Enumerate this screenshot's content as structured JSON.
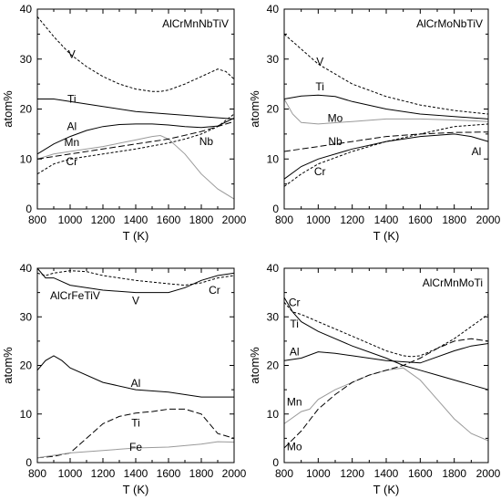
{
  "chart_data": [
    {
      "type": "line",
      "title": "AlCrMnNbTiV",
      "xlabel": "T (K)",
      "ylabel": "atom%",
      "xlim": [
        800,
        2000
      ],
      "ylim": [
        0,
        40
      ],
      "xticks": [
        "800",
        "1000",
        "1200",
        "1400",
        "1600",
        "1800",
        "2000"
      ],
      "yticks": [
        "0",
        "10",
        "20",
        "30",
        "40"
      ],
      "grid": false,
      "series": [
        {
          "name": "V",
          "style": "dashed",
          "color": "#000000",
          "label_at": [
            1010,
            31
          ],
          "x": [
            800,
            900,
            1000,
            1100,
            1200,
            1300,
            1400,
            1500,
            1550,
            1600,
            1700,
            1800,
            1900,
            1950,
            2000
          ],
          "y": [
            38.5,
            34.5,
            31,
            28.5,
            26.5,
            25,
            24,
            23.5,
            23.5,
            23.8,
            25,
            26.5,
            28,
            27.5,
            26
          ]
        },
        {
          "name": "Ti",
          "style": "solid",
          "color": "#000000",
          "label_at": [
            1010,
            22
          ],
          "x": [
            800,
            900,
            1000,
            1200,
            1400,
            1600,
            1800,
            2000
          ],
          "y": [
            22,
            22,
            21.5,
            20.5,
            19.5,
            19,
            18.5,
            18
          ]
        },
        {
          "name": "Al",
          "style": "solid",
          "color": "#000000",
          "label_at": [
            1010,
            16.5
          ],
          "x": [
            800,
            900,
            1000,
            1100,
            1200,
            1300,
            1400,
            1500,
            1600,
            1700,
            1800,
            1900,
            2000
          ],
          "y": [
            11,
            13,
            14.5,
            15.7,
            16.5,
            16.9,
            17,
            17,
            16.8,
            16.5,
            16.3,
            16.6,
            18.2
          ]
        },
        {
          "name": "Mn",
          "style": "solid",
          "color": "#9a9a9a",
          "label_at": [
            1010,
            13.3
          ],
          "x": [
            800,
            900,
            1000,
            1200,
            1400,
            1500,
            1550,
            1600,
            1700,
            1800,
            1900,
            2000
          ],
          "y": [
            10,
            11,
            11.5,
            12.5,
            13.8,
            14.5,
            14.7,
            14,
            11,
            7,
            4,
            2
          ]
        },
        {
          "name": "Nb",
          "style": "longdash",
          "color": "#000000",
          "label_at": [
            1830,
            13.5
          ],
          "x": [
            800,
            1000,
            1200,
            1400,
            1600,
            1800,
            2000
          ],
          "y": [
            10,
            11,
            12,
            13,
            14,
            15.5,
            17.5
          ]
        },
        {
          "name": "Cr",
          "style": "dashed",
          "color": "#000000",
          "label_at": [
            1010,
            9.5
          ],
          "x": [
            800,
            900,
            1000,
            1100,
            1200,
            1400,
            1600,
            1700,
            1800,
            1900,
            2000
          ],
          "y": [
            7,
            9,
            10,
            10.5,
            11,
            12,
            13.2,
            14,
            15,
            16.5,
            19
          ]
        }
      ]
    },
    {
      "type": "line",
      "title": "AlCrMoNbTiV",
      "xlabel": "T (K)",
      "ylabel": "atom%",
      "xlim": [
        800,
        2000
      ],
      "ylim": [
        0,
        40
      ],
      "xticks": [
        "800",
        "1000",
        "1200",
        "1400",
        "1600",
        "1800",
        "2000"
      ],
      "yticks": [
        "0",
        "10",
        "20",
        "30",
        "40"
      ],
      "grid": false,
      "series": [
        {
          "name": "V",
          "style": "dashed",
          "color": "#000000",
          "label_at": [
            1010,
            29.5
          ],
          "x": [
            800,
            900,
            1000,
            1200,
            1400,
            1600,
            1800,
            2000
          ],
          "y": [
            35,
            32,
            29,
            25,
            22.5,
            20.8,
            19.7,
            19
          ]
        },
        {
          "name": "Ti",
          "style": "solid",
          "color": "#000000",
          "label_at": [
            1010,
            24.5
          ],
          "x": [
            800,
            900,
            1000,
            1100,
            1200,
            1400,
            1600,
            1800,
            2000
          ],
          "y": [
            22,
            22.6,
            22.8,
            22.5,
            21.5,
            20,
            19,
            18.5,
            18
          ]
        },
        {
          "name": "Mo",
          "style": "solid",
          "color": "#9a9a9a",
          "label_at": [
            1100,
            18.2
          ],
          "x": [
            800,
            850,
            900,
            1000,
            1200,
            1400,
            1600,
            1800,
            2000
          ],
          "y": [
            22,
            19,
            17.3,
            17,
            17.5,
            18,
            18,
            17.8,
            17.5
          ]
        },
        {
          "name": "Nb",
          "style": "longdash",
          "color": "#000000",
          "label_at": [
            1100,
            13.5
          ],
          "x": [
            800,
            1000,
            1200,
            1400,
            1600,
            1800,
            2000
          ],
          "y": [
            11.5,
            12.5,
            13.5,
            14.5,
            15,
            15.3,
            15.4
          ]
        },
        {
          "name": "Al",
          "style": "solid",
          "color": "#000000",
          "label_at": [
            1930,
            11.5
          ],
          "x": [
            800,
            900,
            1000,
            1200,
            1400,
            1600,
            1800,
            1900,
            2000
          ],
          "y": [
            6,
            8.5,
            10,
            12,
            13.5,
            14.5,
            15,
            14.5,
            13.5
          ]
        },
        {
          "name": "Cr",
          "style": "dashed",
          "color": "#000000",
          "label_at": [
            1010,
            7.5
          ],
          "x": [
            800,
            900,
            1000,
            1200,
            1400,
            1600,
            1800,
            2000
          ],
          "y": [
            4.5,
            7,
            9,
            11.5,
            13.5,
            15,
            16.5,
            17
          ]
        }
      ]
    },
    {
      "type": "line",
      "title": "AlCrFeTiV",
      "xlabel": "T (K)",
      "ylabel": "atom%",
      "xlim": [
        800,
        2000
      ],
      "ylim": [
        0,
        40
      ],
      "xticks": [
        "800",
        "1000",
        "1200",
        "1400",
        "1600",
        "1800",
        "2000"
      ],
      "yticks": [
        "0",
        "10",
        "20",
        "30",
        "40"
      ],
      "grid": false,
      "series": [
        {
          "name": "V",
          "style": "solid",
          "color": "#000000",
          "label_at": [
            1400,
            33.3
          ],
          "x": [
            800,
            850,
            900,
            1000,
            1200,
            1400,
            1600,
            1700,
            1800,
            1900,
            2000
          ],
          "y": [
            40,
            38,
            38,
            36.5,
            35.5,
            35,
            35,
            36,
            37.5,
            38.5,
            39
          ]
        },
        {
          "name": "Cr",
          "style": "dashed",
          "color": "#000000",
          "label_at": [
            1880,
            35.5
          ],
          "x": [
            800,
            850,
            900,
            1000,
            1100,
            1200,
            1400,
            1600,
            1700,
            1800,
            1900,
            2000
          ],
          "y": [
            39,
            38.5,
            39,
            39.5,
            39.3,
            38.5,
            37.5,
            36.8,
            36.5,
            37,
            38,
            38.5
          ]
        },
        {
          "name": "Al",
          "style": "solid",
          "color": "#000000",
          "label_at": [
            1400,
            16.3
          ],
          "x": [
            800,
            850,
            900,
            950,
            1000,
            1200,
            1400,
            1600,
            1800,
            1900,
            2000
          ],
          "y": [
            19,
            21,
            22,
            21,
            19.5,
            16.5,
            15,
            14.5,
            13.5,
            13.5,
            13.5
          ]
        },
        {
          "name": "Ti",
          "style": "longdash",
          "color": "#000000",
          "label_at": [
            1400,
            8.2
          ],
          "x": [
            800,
            900,
            1000,
            1050,
            1100,
            1200,
            1300,
            1400,
            1500,
            1600,
            1700,
            1800,
            1850,
            1900,
            2000
          ],
          "y": [
            1,
            1.3,
            2,
            3.5,
            5,
            8,
            9.5,
            10.2,
            10.5,
            11,
            11,
            10,
            8,
            6,
            5
          ]
        },
        {
          "name": "Fe",
          "style": "solid",
          "color": "#9a9a9a",
          "label_at": [
            1400,
            3.2
          ],
          "x": [
            800,
            1000,
            1200,
            1400,
            1600,
            1800,
            1900,
            2000
          ],
          "y": [
            1,
            2,
            2.5,
            3,
            3.2,
            3.8,
            4.3,
            4.2
          ]
        }
      ]
    },
    {
      "type": "line",
      "title": "AlCrMnMoTi",
      "xlabel": "T (K)",
      "ylabel": "atom%",
      "xlim": [
        800,
        2000
      ],
      "ylim": [
        0,
        40
      ],
      "xticks": [
        "800",
        "1000",
        "1200",
        "1400",
        "1600",
        "1800",
        "2000"
      ],
      "yticks": [
        "0",
        "10",
        "20",
        "30",
        "40"
      ],
      "grid": false,
      "series": [
        {
          "name": "Cr",
          "style": "dashed",
          "color": "#000000",
          "label_at": [
            860,
            33
          ],
          "x": [
            800,
            850,
            900,
            1000,
            1200,
            1400,
            1500,
            1550,
            1600,
            1700,
            1800,
            1900,
            2000
          ],
          "y": [
            33,
            31,
            30.5,
            29,
            26,
            23,
            22,
            21.8,
            22,
            23.5,
            25.5,
            28,
            30.5
          ]
        },
        {
          "name": "Ti",
          "style": "solid",
          "color": "#000000",
          "label_at": [
            860,
            28.5
          ],
          "x": [
            800,
            850,
            900,
            1000,
            1200,
            1400,
            1500,
            1600,
            1700,
            1800,
            1900,
            2000
          ],
          "y": [
            34,
            31,
            29,
            27,
            24,
            21.5,
            20,
            19,
            18,
            17,
            16,
            15
          ]
        },
        {
          "name": "Al",
          "style": "solid",
          "color": "#000000",
          "label_at": [
            860,
            22.8
          ],
          "x": [
            800,
            900,
            1000,
            1100,
            1200,
            1400,
            1600,
            1800,
            1900,
            2000
          ],
          "y": [
            21,
            21.5,
            22.8,
            22.5,
            22,
            21,
            20.5,
            23,
            24,
            24.5
          ]
        },
        {
          "name": "Mn",
          "style": "solid",
          "color": "#9a9a9a",
          "label_at": [
            860,
            12.5
          ],
          "x": [
            800,
            900,
            950,
            1000,
            1100,
            1200,
            1300,
            1400,
            1500,
            1600,
            1700,
            1800,
            1900,
            2000
          ],
          "y": [
            8,
            10.5,
            11,
            13,
            15,
            16.5,
            18,
            19,
            19.5,
            17,
            13,
            9,
            6,
            4.5
          ]
        },
        {
          "name": "Mo",
          "style": "longdash",
          "color": "#000000",
          "label_at": [
            860,
            3.3
          ],
          "x": [
            800,
            900,
            1000,
            1100,
            1200,
            1300,
            1400,
            1500,
            1600,
            1700,
            1800,
            1900,
            2000
          ],
          "y": [
            3,
            6.5,
            11,
            14,
            16.5,
            18,
            19,
            20,
            21.5,
            23.5,
            25,
            25.5,
            25
          ]
        }
      ]
    }
  ]
}
